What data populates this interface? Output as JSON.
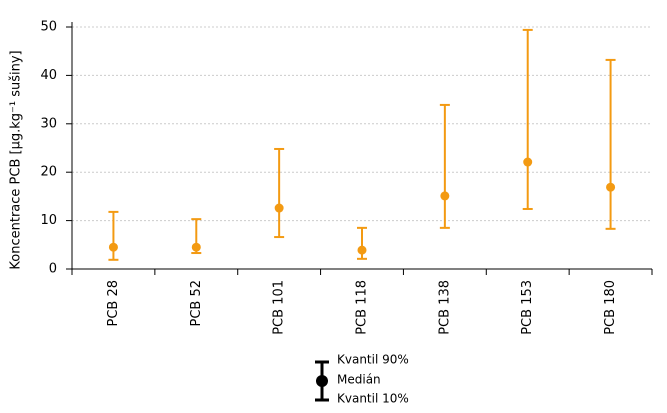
{
  "chart_data": {
    "type": "errorbar",
    "y_label": "Koncentrace PCB [µg.kg⁻¹ sušiny]",
    "categories": [
      "PCB 28",
      "PCB 52",
      "PCB 101",
      "PCB 118",
      "PCB 138",
      "PCB 153",
      "PCB 180"
    ],
    "series": [
      {
        "name": "Kvantil 90%",
        "values": [
          11.8,
          10.3,
          24.8,
          8.5,
          33.9,
          49.4,
          43.2
        ]
      },
      {
        "name": "Medián",
        "values": [
          4.5,
          4.5,
          12.6,
          3.9,
          15.1,
          22.1,
          16.9
        ]
      },
      {
        "name": "Kvantil 10%",
        "values": [
          1.9,
          3.3,
          6.6,
          2.1,
          8.5,
          12.4,
          8.3
        ]
      }
    ],
    "color": "#f39a12",
    "ylim": [
      0,
      50
    ],
    "yticks": [
      0,
      10,
      20,
      30,
      40,
      50
    ],
    "grid": true
  }
}
